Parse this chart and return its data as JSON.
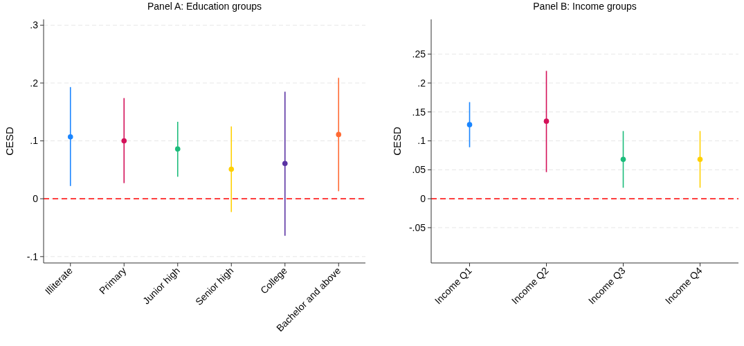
{
  "chart_data": [
    {
      "type": "scatter",
      "title": "Panel A: Education groups",
      "ylabel": "CESD",
      "categories": [
        "Illiterate",
        "Primary",
        "Junior high",
        "Senior high",
        "College",
        "Bachelor and above"
      ],
      "values": [
        0.107,
        0.1,
        0.086,
        0.051,
        0.061,
        0.111
      ],
      "errors": [
        [
          0.022,
          0.193
        ],
        [
          0.027,
          0.174
        ],
        [
          0.038,
          0.133
        ],
        [
          -0.023,
          0.125
        ],
        [
          -0.064,
          0.185
        ],
        [
          0.013,
          0.209
        ]
      ],
      "colors": [
        "#1a85ff",
        "#d41159",
        "#1bbc7b",
        "#ffd000",
        "#5a32a3",
        "#ff6a33"
      ],
      "ylim": [
        -0.111,
        0.31
      ],
      "yticks": [
        {
          "value": -0.1,
          "label": "-.1"
        },
        0,
        {
          "value": 0.1,
          "label": ".1"
        },
        {
          "value": 0.2,
          "label": ".2"
        },
        {
          "value": 0.3,
          "label": ".3"
        }
      ],
      "ref_lines": [
        {
          "axis": "y",
          "value": 0,
          "color": "#ff0000",
          "line_style": "dashed"
        }
      ],
      "grid": "y",
      "marker": "circle"
    },
    {
      "type": "scatter",
      "title": "Panel B: Income groups",
      "ylabel": "CESD",
      "categories": [
        "Income Q1",
        "Income Q2",
        "Income Q3",
        "Income Q4"
      ],
      "values": [
        0.128,
        0.134,
        0.068,
        0.068
      ],
      "errors": [
        [
          0.089,
          0.167
        ],
        [
          0.046,
          0.221
        ],
        [
          0.019,
          0.117
        ],
        [
          0.019,
          0.117
        ]
      ],
      "colors": [
        "#1a85ff",
        "#d41159",
        "#1bbc7b",
        "#ffd000"
      ],
      "ylim": [
        -0.111,
        0.31
      ],
      "yticks": [
        {
          "value": -0.05,
          "label": "-.05"
        },
        0,
        {
          "value": 0.05,
          "label": ".05"
        },
        {
          "value": 0.1,
          "label": ".1"
        },
        {
          "value": 0.15,
          "label": ".15"
        },
        {
          "value": 0.2,
          "label": ".2"
        },
        {
          "value": 0.25,
          "label": ".25"
        }
      ],
      "ref_lines": [
        {
          "axis": "y",
          "value": 0,
          "color": "#ff0000",
          "line_style": "dashed"
        }
      ],
      "grid": "y",
      "marker": "circle"
    }
  ]
}
